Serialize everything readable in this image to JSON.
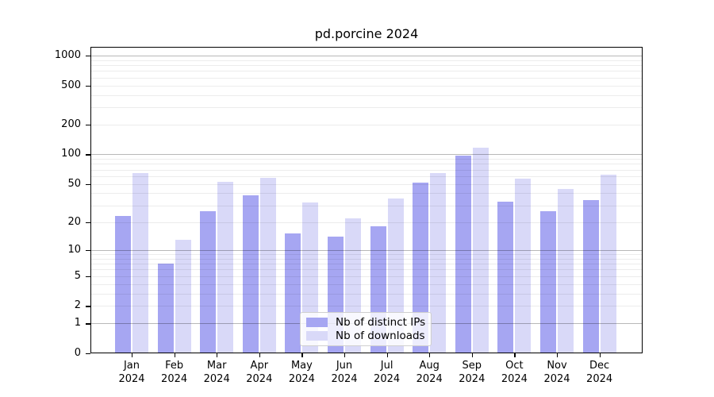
{
  "chart_data": {
    "type": "bar",
    "title": "pd.porcine 2024",
    "categories": [
      "Jan",
      "Feb",
      "Mar",
      "Apr",
      "May",
      "Jun",
      "Jul",
      "Aug",
      "Sep",
      "Oct",
      "Nov",
      "Dec"
    ],
    "x_tick_year": "2024",
    "series": [
      {
        "name": "Nb of distinct IPs",
        "color": "#a6a6f2",
        "values": [
          23,
          7,
          26,
          38,
          15,
          14,
          18,
          51,
          98,
          33,
          26,
          34
        ]
      },
      {
        "name": "Nb of downloads",
        "color": "#d9d9f8",
        "values": [
          65,
          13,
          52,
          58,
          32,
          22,
          35,
          65,
          118,
          57,
          44,
          62
        ]
      }
    ],
    "y_ticks": [
      1000,
      500,
      200,
      100,
      50,
      20,
      10,
      5,
      2,
      1,
      0
    ],
    "y_scale": "log10(1+value)",
    "ylim": [
      0,
      1250
    ],
    "grid": "horizontal-major-and-minor",
    "legend": {
      "position": "inside-bottom-center",
      "labels": [
        "Nb of distinct IPs",
        "Nb of downloads"
      ]
    }
  }
}
